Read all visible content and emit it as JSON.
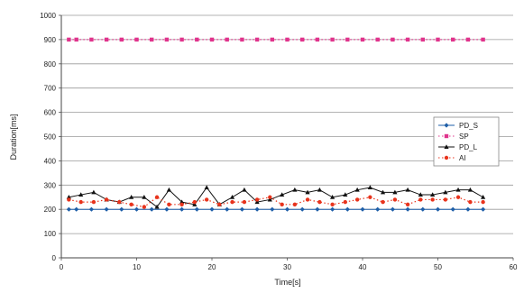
{
  "chart_data": {
    "type": "line",
    "xlabel": "Time[s]",
    "ylabel": "Duration[ms]",
    "xlim": [
      0,
      60
    ],
    "ylim": [
      0,
      1000
    ],
    "x_ticks": [
      "0",
      "10",
      "20",
      "30",
      "40",
      "50",
      "60"
    ],
    "y_ticks": [
      "0",
      "100",
      "200",
      "300",
      "400",
      "500",
      "600",
      "700",
      "800",
      "900",
      "1000"
    ],
    "grid": "horizontal",
    "legend_position": "right",
    "series": [
      {
        "name": "PD_S",
        "color": "#1f5fa8",
        "line": "solid",
        "marker": "diamond",
        "x": [
          1,
          2,
          4,
          6,
          8,
          10,
          12,
          14,
          16,
          18,
          20,
          22,
          24,
          26,
          28,
          30,
          32,
          34,
          36,
          38,
          40,
          42,
          44,
          46,
          48,
          50,
          52,
          54,
          56
        ],
        "y": [
          200,
          200,
          200,
          200,
          200,
          200,
          200,
          200,
          200,
          200,
          200,
          200,
          200,
          200,
          200,
          200,
          200,
          200,
          200,
          200,
          200,
          200,
          200,
          200,
          200,
          200,
          200,
          200,
          200
        ]
      },
      {
        "name": "SP",
        "color": "#e0338c",
        "line": "dotted",
        "marker": "square",
        "x": [
          1,
          2,
          4,
          6,
          8,
          10,
          12,
          14,
          16,
          18,
          20,
          22,
          24,
          26,
          28,
          30,
          32,
          34,
          36,
          38,
          40,
          42,
          44,
          46,
          48,
          50,
          52,
          54,
          56
        ],
        "y": [
          900,
          900,
          900,
          900,
          900,
          900,
          900,
          900,
          900,
          900,
          900,
          900,
          900,
          900,
          900,
          900,
          900,
          900,
          900,
          900,
          900,
          900,
          900,
          900,
          900,
          900,
          900,
          900,
          900
        ]
      },
      {
        "name": "PD_L",
        "color": "#111111",
        "line": "solid",
        "marker": "triangle",
        "x": [
          1,
          2.6,
          4.3,
          6,
          7.7,
          9.3,
          11,
          12.7,
          14.3,
          16,
          17.7,
          19.3,
          21,
          22.7,
          24.3,
          26,
          27.7,
          29.3,
          31,
          32.7,
          34.3,
          36,
          37.7,
          39.3,
          41,
          42.7,
          44.3,
          46,
          47.7,
          49.3,
          51,
          52.7,
          54.3,
          56
        ],
        "y": [
          250,
          260,
          270,
          240,
          230,
          250,
          250,
          210,
          280,
          230,
          220,
          290,
          220,
          250,
          280,
          230,
          240,
          260,
          280,
          270,
          280,
          250,
          260,
          280,
          290,
          270,
          270,
          280,
          260,
          260,
          270,
          280,
          280,
          250
        ]
      },
      {
        "name": "AI",
        "color": "#e8331c",
        "line": "dotted",
        "marker": "circle",
        "x": [
          1,
          2.6,
          4.3,
          6,
          7.7,
          9.3,
          11,
          12.7,
          14.3,
          16,
          17.7,
          19.3,
          21,
          22.7,
          24.3,
          26,
          27.7,
          29.3,
          31,
          32.7,
          34.3,
          36,
          37.7,
          39.3,
          41,
          42.7,
          44.3,
          46,
          47.7,
          49.3,
          51,
          52.7,
          54.3,
          56
        ],
        "y": [
          240,
          230,
          230,
          240,
          230,
          220,
          210,
          250,
          220,
          220,
          230,
          240,
          220,
          230,
          230,
          240,
          250,
          220,
          220,
          240,
          230,
          220,
          230,
          240,
          250,
          230,
          240,
          220,
          240,
          240,
          240,
          250,
          230,
          230
        ]
      }
    ]
  }
}
